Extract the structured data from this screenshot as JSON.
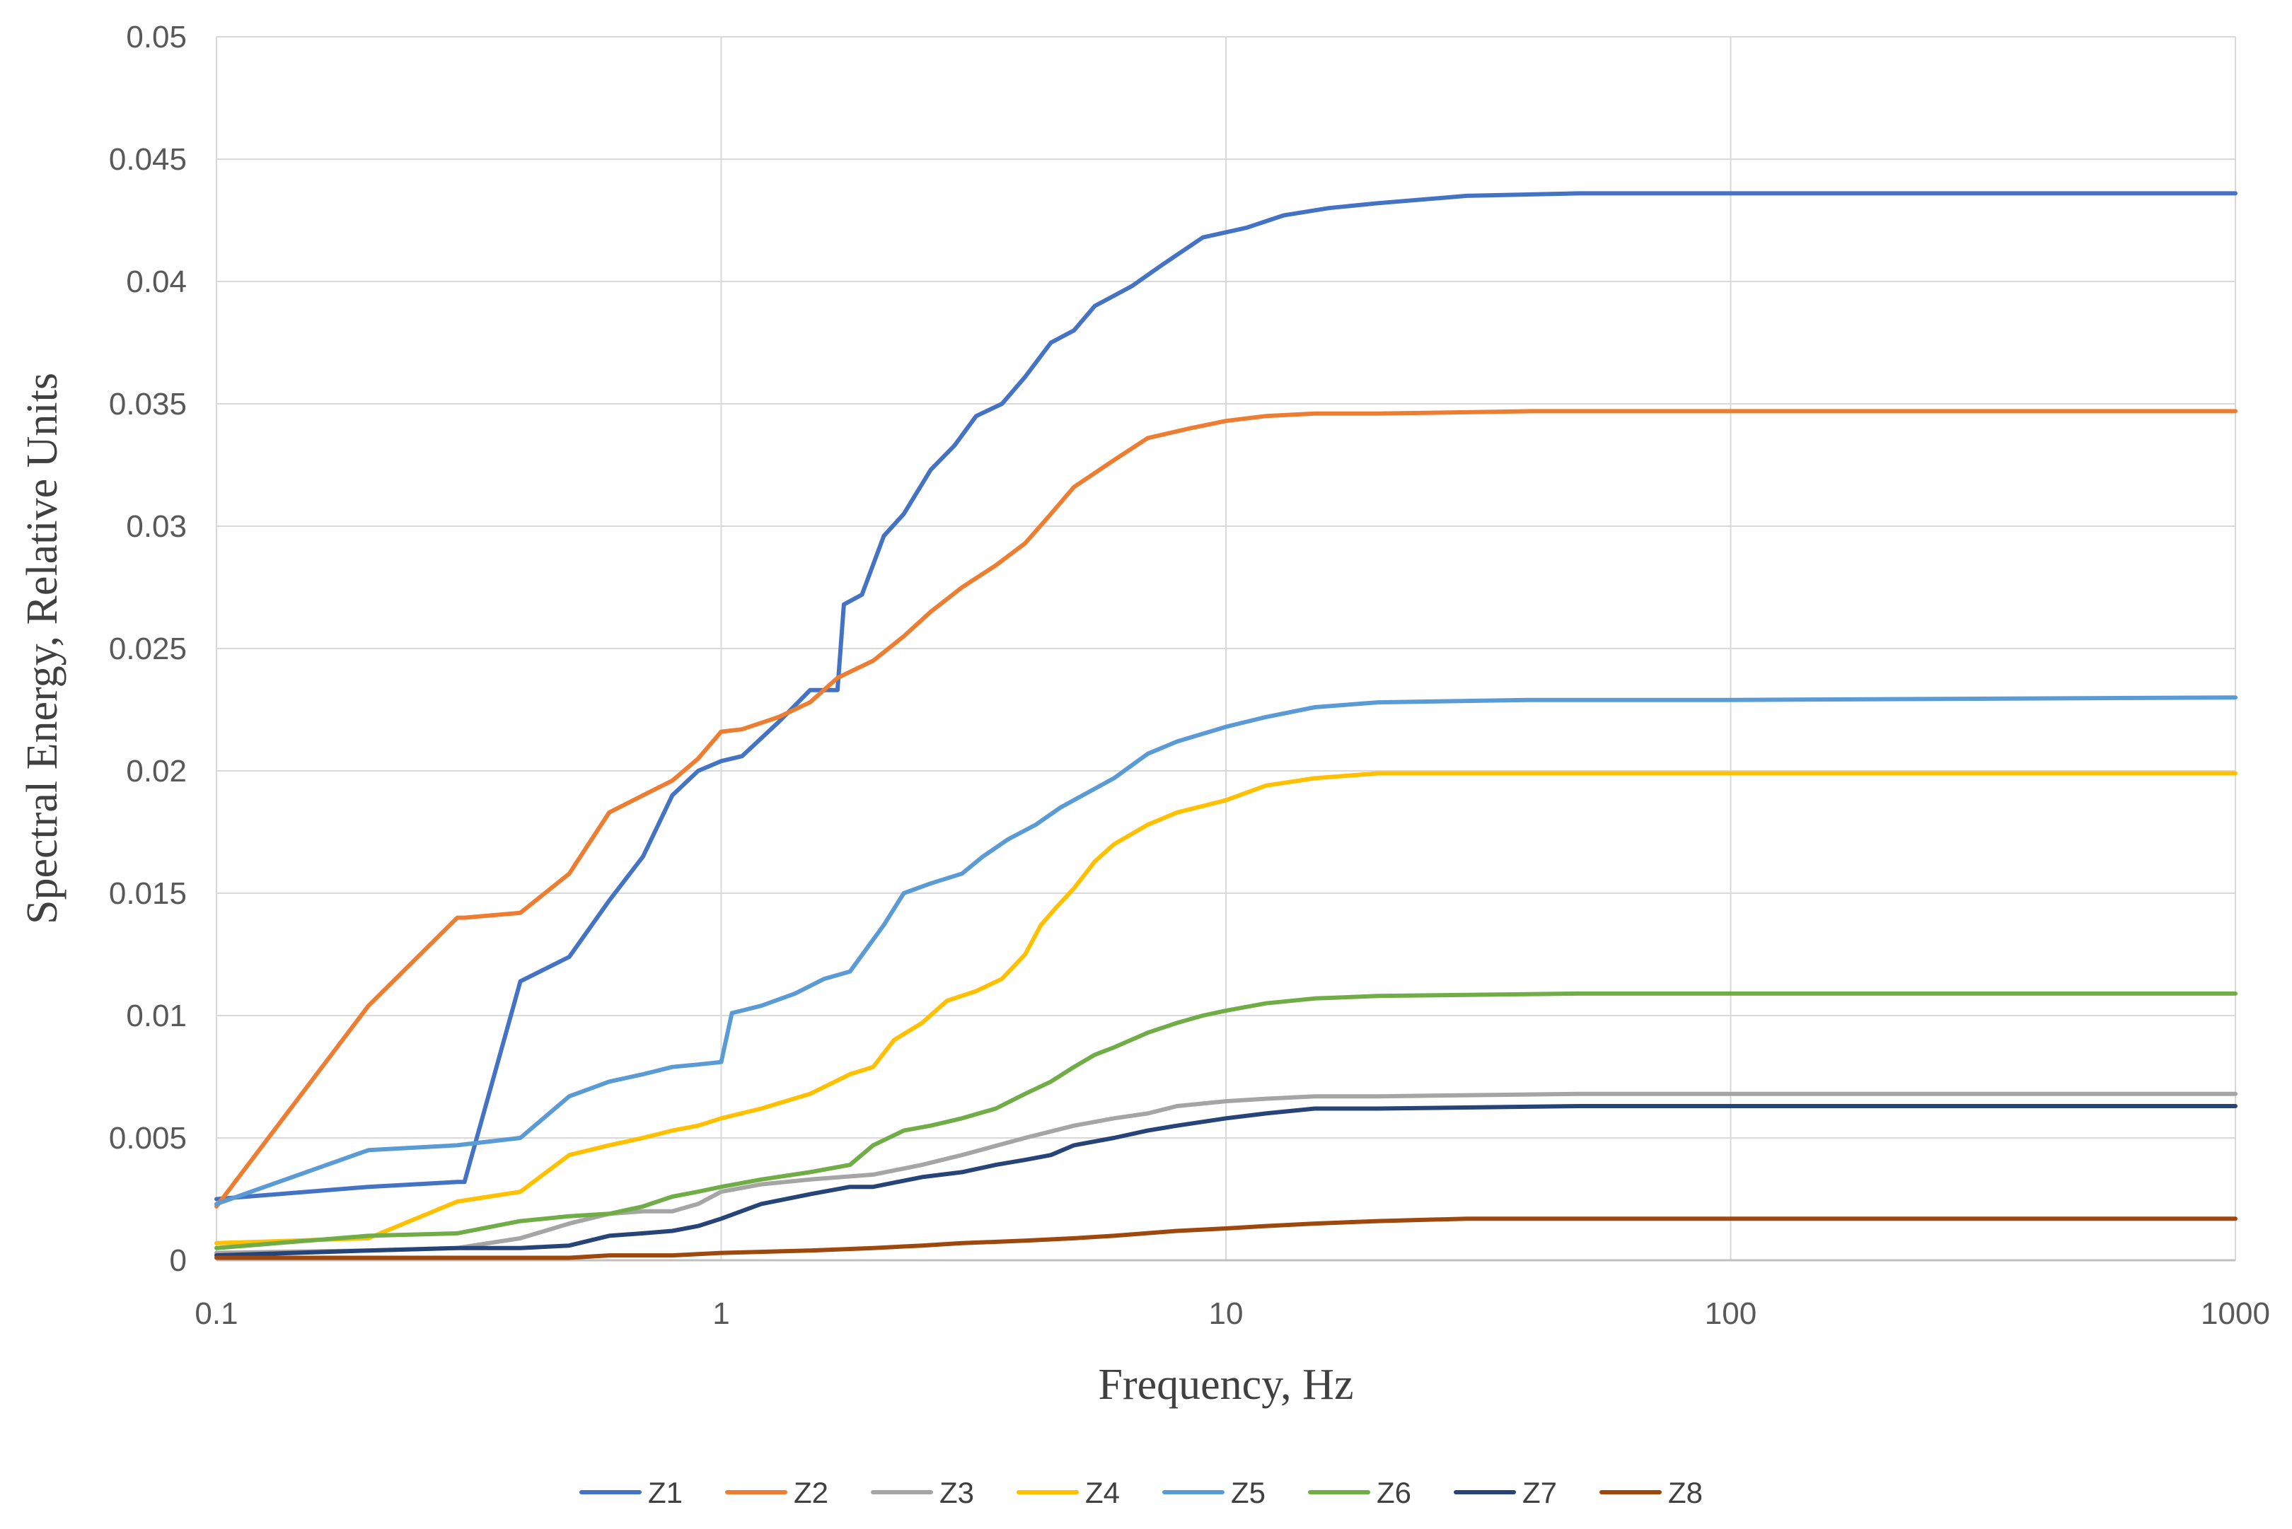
{
  "chart_data": {
    "type": "line",
    "title": "",
    "xlabel": "Frequency, Hz",
    "ylabel": "Spectral Energy, Relative Units",
    "xscale": "log",
    "xlim": [
      0.1,
      1000
    ],
    "ylim": [
      0,
      0.05
    ],
    "xticks": [
      0.1,
      1,
      10,
      100,
      1000
    ],
    "xtick_labels": [
      "0.1",
      "1",
      "10",
      "100",
      "1000"
    ],
    "yticks": [
      0,
      0.005,
      0.01,
      0.015,
      0.02,
      0.025,
      0.03,
      0.035,
      0.04,
      0.045,
      0.05
    ],
    "ytick_labels": [
      "0",
      "0.005",
      "0.01",
      "0.015",
      "0.02",
      "0.025",
      "0.03",
      "0.035",
      "0.04",
      "0.045",
      "0.05"
    ],
    "grid": true,
    "legend_position": "bottom",
    "series": [
      {
        "name": "Z1",
        "color": "#4472C4",
        "x": [
          0.1,
          0.2,
          0.3,
          0.31,
          0.4,
          0.5,
          0.6,
          0.7,
          0.8,
          0.9,
          1.0,
          1.1,
          1.3,
          1.5,
          1.7,
          1.75,
          1.9,
          2.1,
          2.3,
          2.6,
          2.9,
          3.2,
          3.6,
          4.0,
          4.5,
          5.0,
          5.5,
          6.5,
          7.5,
          9.0,
          11,
          13,
          16,
          20,
          30,
          50,
          100,
          1000
        ],
        "y": [
          0.0025,
          0.003,
          0.0032,
          0.0032,
          0.0114,
          0.0124,
          0.0147,
          0.0165,
          0.019,
          0.02,
          0.0204,
          0.0206,
          0.022,
          0.0233,
          0.0233,
          0.0268,
          0.0272,
          0.0296,
          0.0305,
          0.0323,
          0.0333,
          0.0345,
          0.035,
          0.0361,
          0.0375,
          0.038,
          0.039,
          0.0398,
          0.0407,
          0.0418,
          0.0422,
          0.0427,
          0.043,
          0.0432,
          0.0435,
          0.0436,
          0.0436,
          0.0436
        ]
      },
      {
        "name": "Z2",
        "color": "#ED7D31",
        "x": [
          0.1,
          0.2,
          0.3,
          0.31,
          0.4,
          0.5,
          0.6,
          0.7,
          0.8,
          0.9,
          1.0,
          1.1,
          1.3,
          1.5,
          1.7,
          2.0,
          2.3,
          2.6,
          3.0,
          3.5,
          4.0,
          4.5,
          5.0,
          6.0,
          7.0,
          8.5,
          10,
          12,
          15,
          20,
          40,
          100,
          1000
        ],
        "y": [
          0.0022,
          0.0104,
          0.014,
          0.014,
          0.0142,
          0.0158,
          0.0183,
          0.019,
          0.0196,
          0.0205,
          0.0216,
          0.0217,
          0.0222,
          0.0228,
          0.0238,
          0.0245,
          0.0255,
          0.0265,
          0.0275,
          0.0284,
          0.0293,
          0.0305,
          0.0316,
          0.0327,
          0.0336,
          0.034,
          0.0343,
          0.0345,
          0.0346,
          0.0346,
          0.0347,
          0.0347,
          0.0347
        ]
      },
      {
        "name": "Z3",
        "color": "#A5A5A5",
        "x": [
          0.1,
          0.2,
          0.3,
          0.4,
          0.5,
          0.6,
          0.7,
          0.8,
          0.9,
          1.0,
          1.2,
          1.5,
          2.0,
          2.5,
          3.0,
          4.0,
          5.0,
          6.0,
          7.0,
          8.0,
          10,
          12,
          15,
          20,
          50,
          1000
        ],
        "y": [
          0.0003,
          0.0004,
          0.0005,
          0.0009,
          0.0015,
          0.0019,
          0.002,
          0.002,
          0.0023,
          0.0028,
          0.0031,
          0.0033,
          0.0035,
          0.0039,
          0.0043,
          0.005,
          0.0055,
          0.0058,
          0.006,
          0.0063,
          0.0065,
          0.0066,
          0.0067,
          0.0067,
          0.0068,
          0.0068
        ]
      },
      {
        "name": "Z4",
        "color": "#FFC000",
        "x": [
          0.1,
          0.2,
          0.3,
          0.4,
          0.5,
          0.6,
          0.7,
          0.8,
          0.9,
          1.0,
          1.2,
          1.5,
          1.8,
          2.0,
          2.2,
          2.5,
          2.8,
          3.2,
          3.6,
          4.0,
          4.3,
          4.6,
          5.0,
          5.5,
          6.0,
          7.0,
          8.0,
          10,
          12,
          15,
          20,
          50,
          1000
        ],
        "y": [
          0.0007,
          0.0009,
          0.0024,
          0.0028,
          0.0043,
          0.0047,
          0.005,
          0.0053,
          0.0055,
          0.0058,
          0.0062,
          0.0068,
          0.0076,
          0.0079,
          0.009,
          0.0097,
          0.0106,
          0.011,
          0.0115,
          0.0125,
          0.0137,
          0.0144,
          0.0152,
          0.0163,
          0.017,
          0.0178,
          0.0183,
          0.0188,
          0.0194,
          0.0197,
          0.0199,
          0.0199,
          0.0199
        ]
      },
      {
        "name": "Z5",
        "color": "#5B9BD5",
        "x": [
          0.1,
          0.2,
          0.3,
          0.4,
          0.5,
          0.6,
          0.7,
          0.8,
          0.9,
          1.0,
          1.05,
          1.2,
          1.4,
          1.6,
          1.8,
          2.0,
          2.1,
          2.3,
          2.6,
          3.0,
          3.3,
          3.7,
          4.2,
          4.7,
          5.2,
          6.0,
          7.0,
          8.0,
          10,
          12,
          15,
          20,
          40,
          100,
          1000
        ],
        "y": [
          0.0023,
          0.0045,
          0.0047,
          0.005,
          0.0067,
          0.0073,
          0.0076,
          0.0079,
          0.008,
          0.0081,
          0.0101,
          0.0104,
          0.0109,
          0.0115,
          0.0118,
          0.0131,
          0.0137,
          0.015,
          0.0154,
          0.0158,
          0.0165,
          0.0172,
          0.0178,
          0.0185,
          0.019,
          0.0197,
          0.0207,
          0.0212,
          0.0218,
          0.0222,
          0.0226,
          0.0228,
          0.0229,
          0.0229,
          0.023
        ]
      },
      {
        "name": "Z6",
        "color": "#70AD47",
        "x": [
          0.1,
          0.2,
          0.3,
          0.4,
          0.5,
          0.6,
          0.7,
          0.8,
          0.9,
          1.0,
          1.2,
          1.5,
          1.8,
          2.0,
          2.3,
          2.6,
          3.0,
          3.5,
          4.0,
          4.5,
          5.0,
          5.5,
          6.0,
          7.0,
          8.0,
          9.0,
          10,
          12,
          15,
          20,
          50,
          1000
        ],
        "y": [
          0.0005,
          0.001,
          0.0011,
          0.0016,
          0.0018,
          0.0019,
          0.0022,
          0.0026,
          0.0028,
          0.003,
          0.0033,
          0.0036,
          0.0039,
          0.0047,
          0.0053,
          0.0055,
          0.0058,
          0.0062,
          0.0068,
          0.0073,
          0.0079,
          0.0084,
          0.0087,
          0.0093,
          0.0097,
          0.01,
          0.0102,
          0.0105,
          0.0107,
          0.0108,
          0.0109,
          0.0109
        ]
      },
      {
        "name": "Z7",
        "color": "#264478",
        "x": [
          0.1,
          0.2,
          0.3,
          0.4,
          0.5,
          0.6,
          0.7,
          0.8,
          0.9,
          1.0,
          1.2,
          1.5,
          1.8,
          2.0,
          2.5,
          3.0,
          3.5,
          4.0,
          4.5,
          5.0,
          6.0,
          7.0,
          8.0,
          10,
          12,
          15,
          20,
          50,
          1000
        ],
        "y": [
          0.0002,
          0.0004,
          0.0005,
          0.0005,
          0.0006,
          0.001,
          0.0011,
          0.0012,
          0.0014,
          0.0017,
          0.0023,
          0.0027,
          0.003,
          0.003,
          0.0034,
          0.0036,
          0.0039,
          0.0041,
          0.0043,
          0.0047,
          0.005,
          0.0053,
          0.0055,
          0.0058,
          0.006,
          0.0062,
          0.0062,
          0.0063,
          0.0063
        ]
      },
      {
        "name": "Z8",
        "color": "#9E480E",
        "x": [
          0.1,
          0.2,
          0.3,
          0.4,
          0.5,
          0.6,
          0.8,
          1.0,
          1.5,
          2.0,
          2.5,
          3.0,
          4.0,
          5.0,
          6.0,
          8.0,
          10,
          12,
          15,
          20,
          30,
          100,
          1000
        ],
        "y": [
          0.0001,
          0.0001,
          0.0001,
          0.0001,
          0.0001,
          0.0002,
          0.0002,
          0.0003,
          0.0004,
          0.0005,
          0.0006,
          0.0007,
          0.0008,
          0.0009,
          0.001,
          0.0012,
          0.0013,
          0.0014,
          0.0015,
          0.0016,
          0.0017,
          0.0017,
          0.0017
        ]
      }
    ]
  }
}
